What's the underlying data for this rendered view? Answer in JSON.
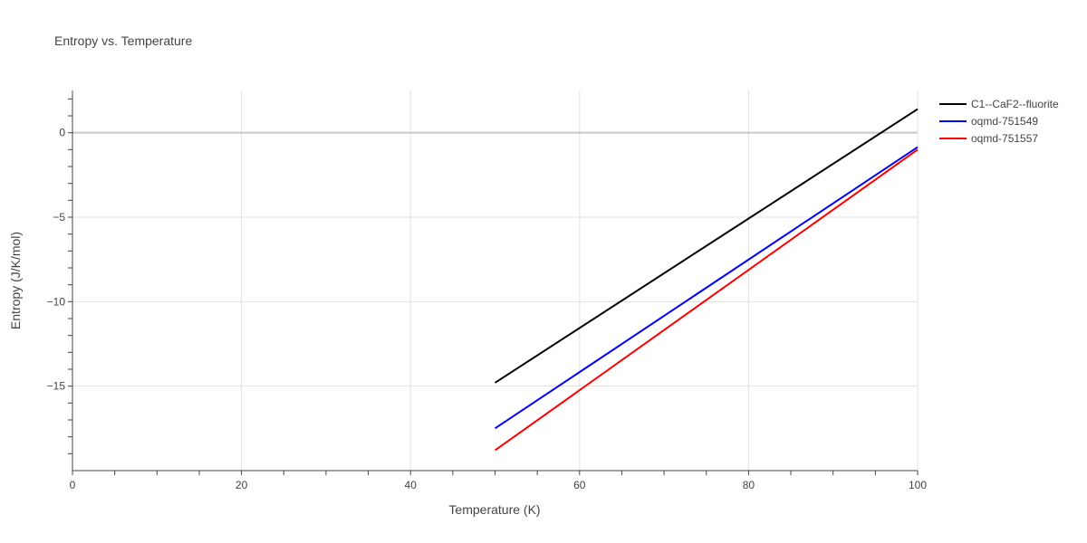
{
  "chart_data": {
    "type": "line",
    "title": "Entropy vs. Temperature",
    "xlabel": "Temperature (K)",
    "ylabel": "Entropy (J/K/mol)",
    "xlim": [
      0,
      100
    ],
    "ylim": [
      -20,
      2.5
    ],
    "x_ticks": [
      0,
      20,
      40,
      60,
      80,
      100
    ],
    "y_ticks": [
      0,
      -5,
      -10,
      -15
    ],
    "x_tick_labels": [
      "0",
      "20",
      "40",
      "60",
      "80",
      "100"
    ],
    "y_tick_labels": [
      "0",
      "−5",
      "−10",
      "−15"
    ],
    "grid": true,
    "legend_position": "top-right",
    "series": [
      {
        "name": "C1--CaF2--fluorite",
        "color": "#000000",
        "x": [
          50,
          100
        ],
        "y": [
          -14.8,
          1.4
        ]
      },
      {
        "name": "oqmd-751549",
        "color": "#0000ff",
        "x": [
          50,
          100
        ],
        "y": [
          -17.5,
          -0.85
        ]
      },
      {
        "name": "oqmd-751557",
        "color": "#ff0000",
        "x": [
          50,
          100
        ],
        "y": [
          -18.8,
          -1.0
        ]
      }
    ]
  }
}
